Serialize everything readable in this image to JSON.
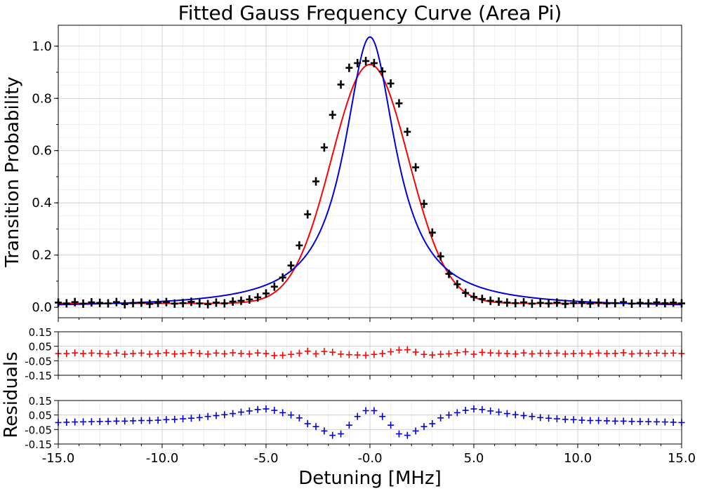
{
  "chart_data": [
    {
      "type": "scatter",
      "title": "Fitted Gauss Frequency Curve (Area Pi)",
      "xlabel": "",
      "ylabel": "Transition Probability",
      "xlim": [
        -15,
        15
      ],
      "ylim": [
        -0.04,
        1.08
      ],
      "x_ticks": [
        "-15.0",
        "-10.0",
        "-5.0",
        "-0.0",
        "5.0",
        "10.0",
        "15.0"
      ],
      "y_ticks": [
        "0.0",
        "0.2",
        "0.4",
        "0.6",
        "0.8",
        "1.0"
      ],
      "y_tick_values": [
        0,
        0.2,
        0.4,
        0.6,
        0.8,
        1.0
      ],
      "grid": true,
      "series": [
        {
          "kind": "data-points",
          "color": "#000000",
          "x": [
            -15.0,
            -14.6,
            -14.2,
            -13.8,
            -13.4,
            -13.0,
            -12.6,
            -12.2,
            -11.8,
            -11.4,
            -11.0,
            -10.6,
            -10.2,
            -9.8,
            -9.4,
            -9.0,
            -8.6,
            -8.2,
            -7.8,
            -7.4,
            -7.0,
            -6.6,
            -6.2,
            -5.8,
            -5.4,
            -5.0,
            -4.6,
            -4.2,
            -3.8,
            -3.4,
            -3.0,
            -2.6,
            -2.2,
            -1.8,
            -1.4,
            -1.0,
            -0.6,
            -0.2,
            0.2,
            0.6,
            1.0,
            1.4,
            1.8,
            2.2,
            2.6,
            3.0,
            3.4,
            3.8,
            4.2,
            4.6,
            5.0,
            5.4,
            5.8,
            6.2,
            6.6,
            7.0,
            7.4,
            7.8,
            8.2,
            8.6,
            9.0,
            9.4,
            9.8,
            10.2,
            10.6,
            11.0,
            11.4,
            11.8,
            12.2,
            12.6,
            13.0,
            13.4,
            13.8,
            14.2,
            14.6,
            15.0
          ],
          "y": [
            0.018,
            0.015,
            0.02,
            0.014,
            0.019,
            0.017,
            0.015,
            0.02,
            0.012,
            0.016,
            0.018,
            0.013,
            0.017,
            0.02,
            0.014,
            0.016,
            0.021,
            0.015,
            0.012,
            0.018,
            0.015,
            0.022,
            0.025,
            0.03,
            0.038,
            0.053,
            0.079,
            0.114,
            0.16,
            0.237,
            0.356,
            0.482,
            0.612,
            0.737,
            0.853,
            0.917,
            0.935,
            0.943,
            0.935,
            0.903,
            0.857,
            0.781,
            0.672,
            0.536,
            0.396,
            0.286,
            0.195,
            0.128,
            0.088,
            0.055,
            0.04,
            0.032,
            0.025,
            0.022,
            0.018,
            0.016,
            0.019,
            0.014,
            0.017,
            0.015,
            0.018,
            0.013,
            0.016,
            0.017,
            0.014,
            0.018,
            0.015,
            0.016,
            0.02,
            0.014,
            0.017,
            0.015,
            0.019,
            0.016,
            0.018,
            0.015
          ]
        },
        {
          "kind": "gauss-fit",
          "color": "#ff0000",
          "amplitude": 0.915,
          "center": 0.0,
          "sigma": 1.85,
          "offset": 0.015
        },
        {
          "kind": "lorentz-fit",
          "color": "#0000dd",
          "amplitude": 1.035,
          "center": 0.0,
          "hwhm": 1.5,
          "offset": 0.0
        }
      ]
    },
    {
      "type": "scatter",
      "xlim": [
        -15,
        15
      ],
      "ylim": [
        -0.15,
        0.15
      ],
      "y_ticks": [
        "0.15",
        "0.05",
        "-0.05",
        "-0.15"
      ],
      "y_tick_values": [
        0.15,
        0.05,
        -0.05,
        -0.15
      ],
      "grid": true,
      "series": [
        {
          "kind": "residuals-gauss",
          "color": "#ff0000",
          "x": [
            -15.0,
            -14.6,
            -14.2,
            -13.8,
            -13.4,
            -13.0,
            -12.6,
            -12.2,
            -11.8,
            -11.4,
            -11.0,
            -10.6,
            -10.2,
            -9.8,
            -9.4,
            -9.0,
            -8.6,
            -8.2,
            -7.8,
            -7.4,
            -7.0,
            -6.6,
            -6.2,
            -5.8,
            -5.4,
            -5.0,
            -4.6,
            -4.2,
            -3.8,
            -3.4,
            -3.0,
            -2.6,
            -2.2,
            -1.8,
            -1.4,
            -1.0,
            -0.6,
            -0.2,
            0.2,
            0.6,
            1.0,
            1.4,
            1.8,
            2.2,
            2.6,
            3.0,
            3.4,
            3.8,
            4.2,
            4.6,
            5.0,
            5.4,
            5.8,
            6.2,
            6.6,
            7.0,
            7.4,
            7.8,
            8.2,
            8.6,
            9.0,
            9.4,
            9.8,
            10.2,
            10.6,
            11.0,
            11.4,
            11.8,
            12.2,
            12.6,
            13.0,
            13.4,
            13.8,
            14.2,
            14.6,
            15.0
          ],
          "y": [
            0.0,
            0.0,
            0.004,
            0.0,
            0.003,
            0.0,
            -0.003,
            0.004,
            -0.005,
            0.0,
            0.003,
            -0.004,
            0.0,
            0.005,
            -0.003,
            0.0,
            0.006,
            0.0,
            -0.004,
            0.003,
            -0.002,
            0.005,
            0.0,
            -0.003,
            0.004,
            0.0,
            -0.014,
            -0.012,
            -0.006,
            0.002,
            0.016,
            -0.002,
            0.014,
            0.009,
            -0.004,
            -0.008,
            -0.01,
            -0.012,
            -0.006,
            0.0,
            0.012,
            0.024,
            0.026,
            0.01,
            -0.006,
            -0.01,
            -0.005,
            -0.002,
            0.006,
            0.012,
            -0.005,
            0.008,
            0.004,
            0.002,
            0.0,
            -0.003,
            0.004,
            -0.002,
            0.002,
            0.0,
            0.003,
            -0.003,
            0.0,
            0.002,
            -0.002,
            0.003,
            0.0,
            0.001,
            0.005,
            -0.002,
            0.002,
            0.0,
            0.004,
            0.001,
            0.003,
            0.0
          ]
        }
      ]
    },
    {
      "type": "scatter",
      "xlabel": "Detuning [MHz]",
      "ylabel": "Residuals",
      "xlim": [
        -15,
        15
      ],
      "ylim": [
        -0.15,
        0.15
      ],
      "x_ticks": [
        "-15.0",
        "-10.0",
        "-5.0",
        "-0.0",
        "5.0",
        "10.0",
        "15.0"
      ],
      "y_ticks": [
        "0.15",
        "0.05",
        "-0.05",
        "-0.15"
      ],
      "y_tick_values": [
        0.15,
        0.05,
        -0.05,
        -0.15
      ],
      "grid": true,
      "series": [
        {
          "kind": "residuals-lorentz",
          "color": "#0000dd",
          "x": [
            -15.0,
            -14.6,
            -14.2,
            -13.8,
            -13.4,
            -13.0,
            -12.6,
            -12.2,
            -11.8,
            -11.4,
            -11.0,
            -10.6,
            -10.2,
            -9.8,
            -9.4,
            -9.0,
            -8.6,
            -8.2,
            -7.8,
            -7.4,
            -7.0,
            -6.6,
            -6.2,
            -5.8,
            -5.4,
            -5.0,
            -4.6,
            -4.2,
            -3.8,
            -3.4,
            -3.0,
            -2.6,
            -2.2,
            -1.8,
            -1.4,
            -1.0,
            -0.6,
            -0.2,
            0.2,
            0.6,
            1.0,
            1.4,
            1.8,
            2.2,
            2.6,
            3.0,
            3.4,
            3.8,
            4.2,
            4.6,
            5.0,
            5.4,
            5.8,
            6.2,
            6.6,
            7.0,
            7.4,
            7.8,
            8.2,
            8.6,
            9.0,
            9.4,
            9.8,
            10.2,
            10.6,
            11.0,
            11.4,
            11.8,
            12.2,
            12.6,
            13.0,
            13.4,
            13.8,
            14.2,
            14.6,
            15.0
          ],
          "y": [
            -0.002,
            0.0,
            0.002,
            0.003,
            0.004,
            0.005,
            0.006,
            0.008,
            0.008,
            0.01,
            0.012,
            0.012,
            0.014,
            0.018,
            0.02,
            0.024,
            0.028,
            0.032,
            0.04,
            0.046,
            0.052,
            0.06,
            0.07,
            0.078,
            0.088,
            0.092,
            0.082,
            0.066,
            0.05,
            0.03,
            -0.01,
            -0.03,
            -0.06,
            -0.09,
            -0.08,
            -0.02,
            0.04,
            0.08,
            0.08,
            0.04,
            -0.02,
            -0.08,
            -0.09,
            -0.06,
            -0.03,
            -0.01,
            0.03,
            0.05,
            0.066,
            0.082,
            0.092,
            0.088,
            0.078,
            0.07,
            0.06,
            0.052,
            0.046,
            0.04,
            0.032,
            0.028,
            0.024,
            0.02,
            0.018,
            0.014,
            0.012,
            0.012,
            0.01,
            0.008,
            0.008,
            0.006,
            0.005,
            0.004,
            0.003,
            0.002,
            0.0,
            -0.002
          ]
        }
      ]
    }
  ]
}
